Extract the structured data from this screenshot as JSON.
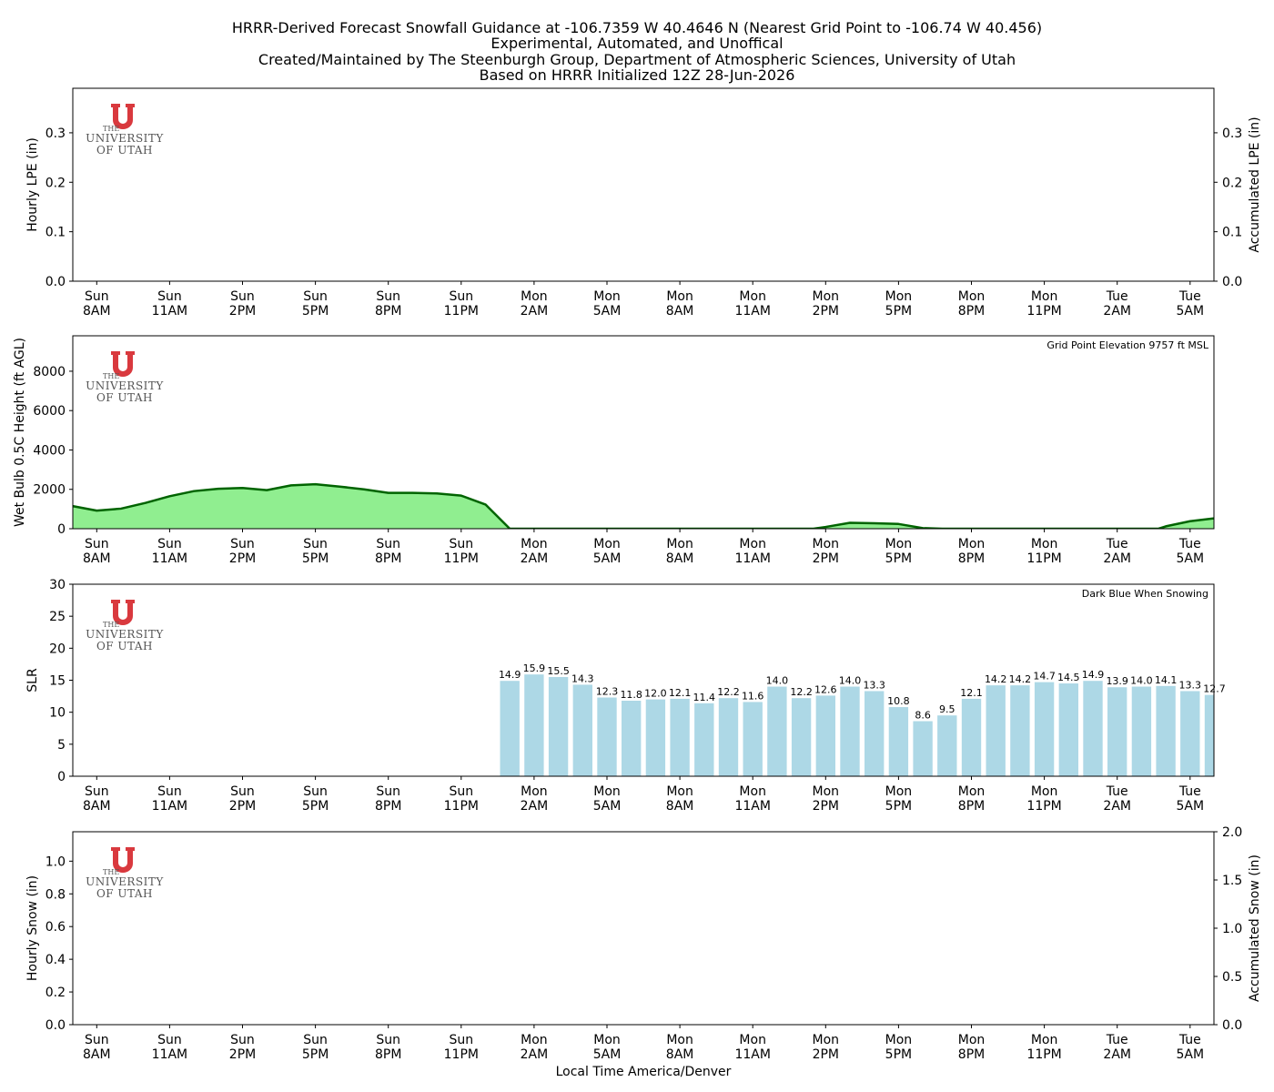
{
  "title_lines": [
    "HRRR-Derived Forecast Snowfall Guidance at -106.7359 W 40.4646 N (Nearest Grid Point to -106.74 W 40.456)",
    "Experimental, Automated, and Unoffical",
    "Created/Maintained by The Steenburgh Group, Department of Atmospheric Sciences, University of Utah",
    "Based on HRRR Initialized 12Z 28-Jun-2026"
  ],
  "logo": {
    "top": "THE",
    "middle": "UNIVERSITY",
    "bottom": "OF UTAH",
    "color": "#d9393e"
  },
  "x_ticks": [
    {
      "day": "Sun",
      "time": "8AM"
    },
    {
      "day": "Sun",
      "time": "11AM"
    },
    {
      "day": "Sun",
      "time": "2PM"
    },
    {
      "day": "Sun",
      "time": "5PM"
    },
    {
      "day": "Sun",
      "time": "8PM"
    },
    {
      "day": "Sun",
      "time": "11PM"
    },
    {
      "day": "Mon",
      "time": "2AM"
    },
    {
      "day": "Mon",
      "time": "5AM"
    },
    {
      "day": "Mon",
      "time": "8AM"
    },
    {
      "day": "Mon",
      "time": "11AM"
    },
    {
      "day": "Mon",
      "time": "2PM"
    },
    {
      "day": "Mon",
      "time": "5PM"
    },
    {
      "day": "Mon",
      "time": "8PM"
    },
    {
      "day": "Mon",
      "time": "11PM"
    },
    {
      "day": "Tue",
      "time": "2AM"
    },
    {
      "day": "Tue",
      "time": "5AM"
    }
  ],
  "xlabel": "Local Time America/Denver",
  "chart_data": [
    {
      "type": "bar",
      "ylabel": "Hourly LPE (in)",
      "y2label": "Accumulated LPE (in)",
      "ylim": [
        0,
        0.39
      ],
      "yticks": [
        "0.0",
        "0.1",
        "0.2",
        "0.3"
      ],
      "y2ticks": [
        "0.0",
        "0.1",
        "0.2",
        "0.3"
      ],
      "x_hours": [
        0,
        47
      ],
      "values": []
    },
    {
      "type": "area",
      "ylabel": "Wet Bulb 0.5C Height (ft AGL)",
      "annotation": "Grid Point Elevation 9757 ft MSL",
      "ylim": [
        0,
        9800
      ],
      "yticks": [
        "0",
        "2000",
        "4000",
        "6000",
        "8000"
      ],
      "colors": {
        "fill": "#90ee90",
        "line": "#006400"
      },
      "x_hours": [
        -1,
        0,
        1,
        2,
        3,
        4,
        5,
        6,
        7,
        8,
        9,
        10,
        11,
        12,
        13,
        14,
        15,
        16,
        17,
        17.8,
        18,
        29.5,
        30,
        31,
        32,
        33,
        34,
        34.8,
        35,
        43.7,
        44,
        45,
        46
      ],
      "values": [
        1150,
        920,
        1020,
        1310,
        1650,
        1910,
        2030,
        2070,
        1960,
        2200,
        2260,
        2140,
        2000,
        1820,
        1820,
        1790,
        1680,
        1230,
        0,
        0,
        0,
        0,
        90,
        300,
        280,
        240,
        30,
        0,
        0,
        0,
        120,
        380,
        530
      ]
    },
    {
      "type": "bar",
      "ylabel": "SLR",
      "annotation": "Dark Blue When Snowing",
      "ylim": [
        0,
        30
      ],
      "yticks": [
        "0",
        "5",
        "10",
        "15",
        "20",
        "25",
        "30"
      ],
      "colors": {
        "bar": "#add8e6"
      },
      "x_hours": [
        17,
        18,
        19,
        20,
        21,
        22,
        23,
        24,
        25,
        26,
        27,
        28,
        29,
        30,
        31,
        32,
        33,
        34,
        35,
        36,
        37,
        38,
        39,
        40,
        41,
        42,
        43,
        44,
        45,
        46
      ],
      "values": [
        14.9,
        15.9,
        15.5,
        14.3,
        12.3,
        11.8,
        12.0,
        12.1,
        11.4,
        12.2,
        11.6,
        14.0,
        12.2,
        12.6,
        14.0,
        13.3,
        10.8,
        8.6,
        9.5,
        12.1,
        14.2,
        14.2,
        14.7,
        14.5,
        14.9,
        13.9,
        14.0,
        14.1,
        13.3,
        12.7
      ],
      "labels": [
        "14.9",
        "15.9",
        "15.5",
        "14.3",
        "12.3",
        "11.8",
        "12.0",
        "12.1",
        "11.4",
        "12.2",
        "11.6",
        "14.0",
        "12.2",
        "12.6",
        "14.0",
        "13.3",
        "10.8",
        "8.6",
        "9.5",
        "12.1",
        "14.2",
        "14.2",
        "14.7",
        "14.5",
        "14.9",
        "13.9",
        "14.0",
        "14.1",
        "13.3",
        "12.7"
      ]
    },
    {
      "type": "bar",
      "ylabel": "Hourly Snow (in)",
      "y2label": "Accumulated Snow (in)",
      "ylim": [
        0,
        1.18
      ],
      "yticks": [
        "0.0",
        "0.2",
        "0.4",
        "0.6",
        "0.8",
        "1.0"
      ],
      "y2ticks": [
        "0.0",
        "0.5",
        "1.0",
        "1.5",
        "2.0"
      ],
      "values": []
    }
  ]
}
